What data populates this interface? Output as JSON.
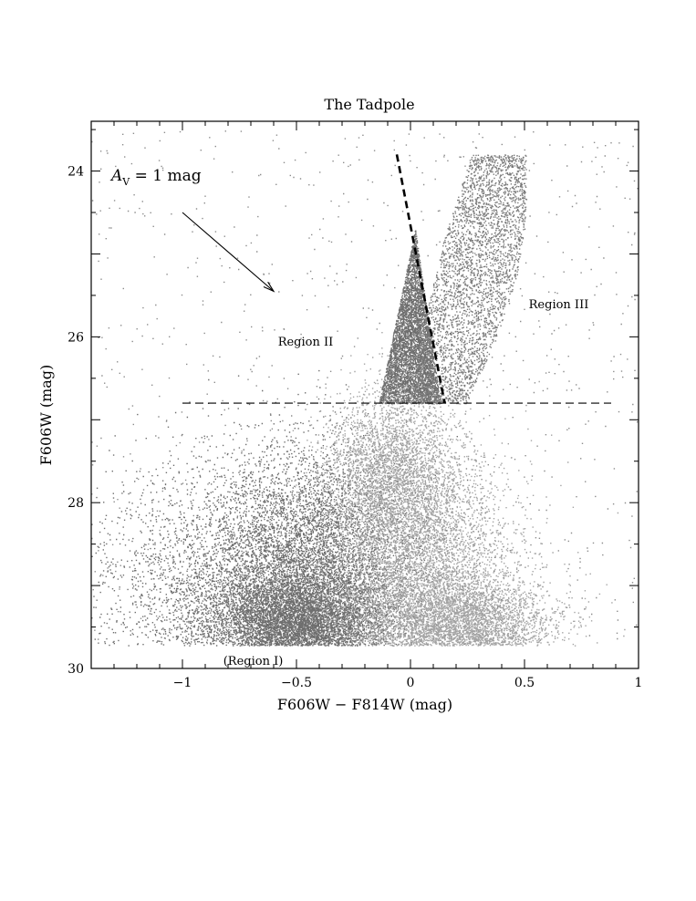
{
  "chart_data": {
    "type": "scatter",
    "title": "The Tadpole",
    "xlabel": "F606W − F814W (mag)",
    "ylabel": "F606W (mag)",
    "xlim": [
      -1.4,
      1.0
    ],
    "ylim": [
      30,
      23.4
    ],
    "y_inverted": true,
    "grid": false,
    "x_ticks": [
      {
        "value": -1,
        "label": "−1"
      },
      {
        "value": -0.5,
        "label": "−0.5"
      },
      {
        "value": 0,
        "label": "0"
      },
      {
        "value": 0.5,
        "label": "0.5"
      },
      {
        "value": 1,
        "label": "1"
      }
    ],
    "y_ticks": [
      {
        "value": 24,
        "label": "24"
      },
      {
        "value": 26,
        "label": "26"
      },
      {
        "value": 28,
        "label": "28"
      },
      {
        "value": 30,
        "label": "30"
      }
    ],
    "annotations": {
      "reddening": {
        "label_main": "A",
        "label_sub": "V",
        "label_rest": " = 1 mag",
        "from": [
          -1.0,
          24.5
        ],
        "to": [
          -0.6,
          25.45
        ]
      },
      "regions": [
        {
          "label": "Region II",
          "x": -0.46,
          "y": 26.05
        },
        {
          "label": "Region III",
          "x": 0.65,
          "y": 25.6
        },
        {
          "label": "(Region I)",
          "x": -0.69,
          "y": 29.9
        }
      ],
      "magnitude_cut": {
        "y": 26.8,
        "x_from": -1.0,
        "x_to": 0.88
      },
      "color_cut": {
        "from": [
          -0.06,
          23.8
        ],
        "to": [
          0.15,
          26.8
        ]
      }
    },
    "series": [
      {
        "color": "#6e6e6e",
        "blobs": [
          {
            "cx": -0.5,
            "cy": 29.45,
            "sx": 0.2,
            "sy": 0.32,
            "n": 9000
          },
          {
            "cx": -0.42,
            "cy": 28.6,
            "sx": 0.22,
            "sy": 0.65,
            "n": 5000
          },
          {
            "cx": -0.78,
            "cy": 29.0,
            "sx": 0.32,
            "sy": 0.75,
            "n": 3500
          }
        ],
        "core": {
          "apex": [
            0.02,
            24.7
          ],
          "base": [
            -0.14,
            0.13
          ],
          "ybase": 26.8,
          "n": 4500
        }
      },
      {
        "color": "#a3a3a3",
        "blobs": [
          {
            "cx": 0.05,
            "cy": 28.8,
            "sx": 0.2,
            "sy": 0.75,
            "n": 11000
          },
          {
            "cx": 0.22,
            "cy": 29.5,
            "sx": 0.2,
            "sy": 0.3,
            "n": 4000
          },
          {
            "cx": -0.08,
            "cy": 27.6,
            "sx": 0.14,
            "sy": 0.5,
            "n": 3000
          }
        ]
      },
      {
        "color": "#7a7a7a",
        "plume": {
          "xmin": 0.08,
          "xmax": 0.6,
          "ymin": 23.8,
          "ymax": 26.8,
          "n": 3500
        }
      },
      {
        "color": "#8c8c8c",
        "sparse": {
          "xmin": -1.4,
          "xmax": 1.0,
          "ymin": 23.5,
          "ymax": 29.7,
          "n": 900
        }
      }
    ]
  }
}
